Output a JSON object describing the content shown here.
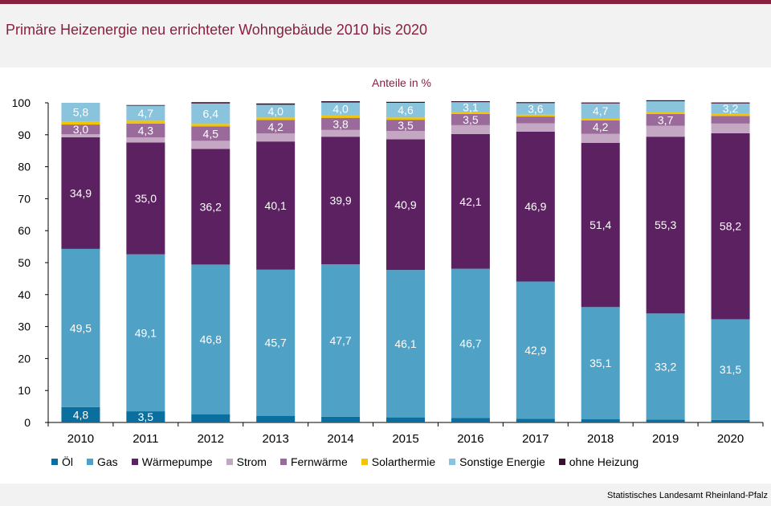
{
  "header": {
    "title": "Primäre Heizenergie neu errichteter Wohngebäude 2010 bis 2020"
  },
  "source": "Statistisches Landesamt  Rheinland-Pfalz",
  "chart_data": {
    "type": "bar",
    "stacked": true,
    "title": "Primäre Heizenergie neu errichteter Wohngebäude 2010 bis 2020",
    "ylabel": "Anteile in %",
    "xlabel": "",
    "ylim": [
      0,
      100
    ],
    "yticks": [
      "0",
      "10",
      "20",
      "30",
      "40",
      "50",
      "60",
      "70",
      "80",
      "90",
      "100"
    ],
    "legend_position": "bottom",
    "categories": [
      "2010",
      "2011",
      "2012",
      "2013",
      "2014",
      "2015",
      "2016",
      "2017",
      "2018",
      "2019",
      "2020"
    ],
    "series": [
      {
        "name": "Öl",
        "color": "#0a6f9e",
        "values": [
          4.8,
          3.5,
          2.6,
          2.1,
          1.8,
          1.6,
          1.4,
          1.2,
          1.0,
          0.9,
          0.8
        ],
        "labels": [
          "4,8",
          "3,5",
          "",
          "",
          "",
          "",
          "",
          "",
          "",
          "",
          ""
        ]
      },
      {
        "name": "Gas",
        "color": "#4fa1c5",
        "values": [
          49.5,
          49.1,
          46.8,
          45.7,
          47.7,
          46.1,
          46.7,
          42.9,
          35.1,
          33.2,
          31.5
        ],
        "labels": [
          "49,5",
          "49,1",
          "46,8",
          "45,7",
          "47,7",
          "46,1",
          "46,7",
          "42,9",
          "35,1",
          "33,2",
          "31,5"
        ]
      },
      {
        "name": "Wärmepumpe",
        "color": "#5b2160",
        "values": [
          34.9,
          35.0,
          36.2,
          40.1,
          39.9,
          40.9,
          42.1,
          46.9,
          51.4,
          55.3,
          58.2
        ],
        "labels": [
          "34,9",
          "35,0",
          "36,2",
          "40,1",
          "39,9",
          "40,9",
          "42,1",
          "46,9",
          "51,4",
          "55,3",
          "58,2"
        ]
      },
      {
        "name": "Strom",
        "color": "#c3a7c3",
        "values": [
          1.0,
          1.6,
          2.5,
          2.5,
          2.1,
          2.6,
          2.8,
          2.6,
          2.8,
          3.4,
          3.0
        ],
        "labels": [
          "",
          "",
          "",
          "",
          "",
          "",
          "",
          "",
          "",
          "",
          ""
        ]
      },
      {
        "name": "Fernwärme",
        "color": "#9a6a9b",
        "values": [
          3.0,
          4.3,
          4.5,
          4.2,
          3.8,
          3.5,
          3.5,
          2.1,
          4.2,
          3.7,
          2.4
        ],
        "labels": [
          "3,0",
          "4,3",
          "4,5",
          "4,2",
          "3,8",
          "3,5",
          "3,5",
          "",
          "4,2",
          "3,7",
          ""
        ]
      },
      {
        "name": "Solarthermie",
        "color": "#f5c400",
        "values": [
          1.0,
          0.9,
          0.8,
          0.8,
          0.8,
          0.7,
          0.6,
          0.6,
          0.6,
          0.6,
          0.7
        ],
        "labels": [
          "",
          "",
          "",
          "",
          "",
          "",
          "",
          "",
          "",
          "",
          ""
        ]
      },
      {
        "name": "Sonstige Energie",
        "color": "#89c3dc",
        "values": [
          5.8,
          4.7,
          6.4,
          4.0,
          4.0,
          4.6,
          3.1,
          3.6,
          4.7,
          3.4,
          3.2
        ],
        "labels": [
          "5,8",
          "4,7",
          "6,4",
          "4,0",
          "4,0",
          "4,6",
          "3,1",
          "3,6",
          "4,7",
          "",
          "3,2"
        ]
      },
      {
        "name": "ohne Heizung",
        "color": "#3b0f2e",
        "values": [
          0.0,
          0.2,
          0.4,
          0.4,
          0.4,
          0.3,
          0.3,
          0.3,
          0.3,
          0.3,
          0.3
        ],
        "labels": [
          "",
          "",
          "",
          "",
          "",
          "",
          "",
          "",
          "",
          "",
          ""
        ]
      }
    ]
  }
}
